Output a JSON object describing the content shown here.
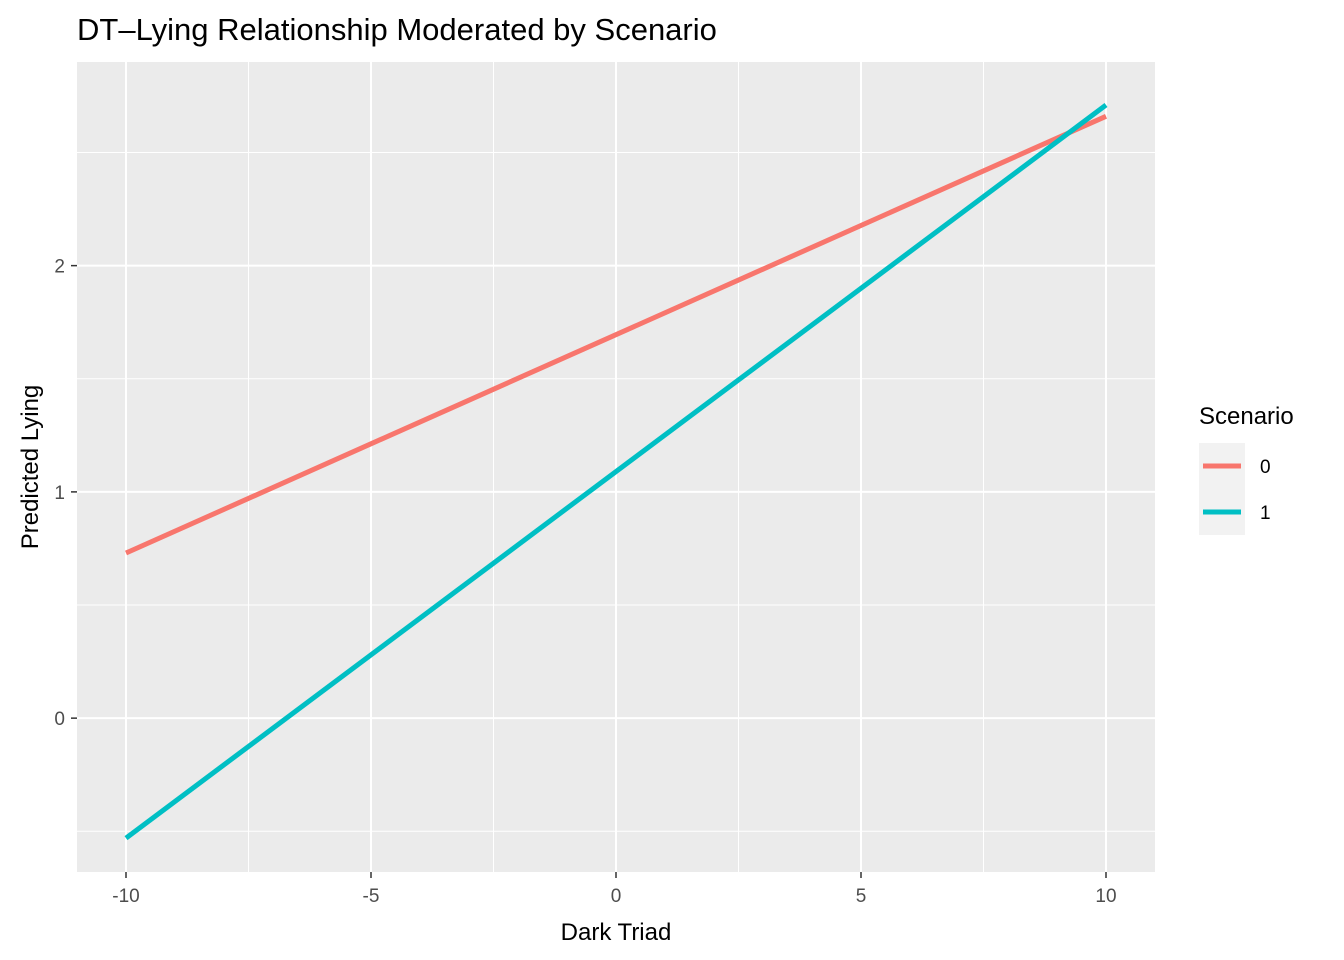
{
  "chart_data": {
    "type": "line",
    "title": "DT–Lying Relationship Moderated by Scenario",
    "xlabel": "Dark Triad",
    "ylabel": "Predicted Lying",
    "xlim": [
      -11,
      11
    ],
    "ylim": [
      -0.68,
      2.9
    ],
    "x_ticks": [
      -10,
      -5,
      0,
      5,
      10
    ],
    "x_tick_labels": [
      "-10",
      "-5",
      "0",
      "5",
      "10"
    ],
    "y_ticks": [
      0,
      1,
      2
    ],
    "y_tick_labels": [
      "0",
      "1",
      "2"
    ],
    "grid": true,
    "legend": {
      "title": "Scenario",
      "position": "right"
    },
    "series": [
      {
        "name": "0",
        "color": "#F8766D",
        "x": [
          -10,
          10
        ],
        "y": [
          0.73,
          2.66
        ]
      },
      {
        "name": "1",
        "color": "#00BFC4",
        "x": [
          -10,
          10
        ],
        "y": [
          -0.53,
          2.71
        ]
      }
    ]
  }
}
